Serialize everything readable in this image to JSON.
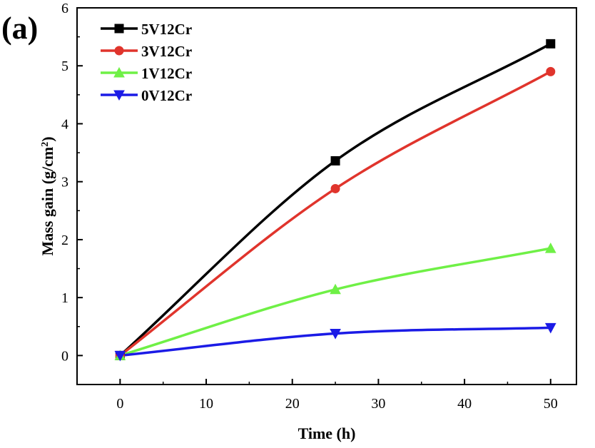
{
  "panel_label": "(a)",
  "chart_data": {
    "type": "line",
    "xlabel": "Time (h)",
    "ylabel_main": "Mass gain (g/cm",
    "ylabel_sup": "2",
    "ylabel_close": ")",
    "xlim": [
      -5,
      53
    ],
    "ylim": [
      -0.5,
      6
    ],
    "xticks": [
      0,
      10,
      20,
      30,
      40,
      50
    ],
    "yticks": [
      0,
      1,
      2,
      3,
      4,
      5,
      6
    ],
    "legend_position": "top-left",
    "grid": false,
    "series": [
      {
        "name": "5V12Cr",
        "color": "#000000",
        "marker": "square",
        "x": [
          0,
          25,
          50
        ],
        "y": [
          0.0,
          3.36,
          5.38
        ]
      },
      {
        "name": "3V12Cr",
        "color": "#e0342c",
        "marker": "circle",
        "x": [
          0,
          25,
          50
        ],
        "y": [
          0.0,
          2.88,
          4.9
        ]
      },
      {
        "name": "1V12Cr",
        "color": "#6ff046",
        "marker": "triangle-up",
        "x": [
          0,
          25,
          50
        ],
        "y": [
          0.0,
          1.14,
          1.85
        ]
      },
      {
        "name": "0V12Cr",
        "color": "#1b1be6",
        "marker": "triangle-down",
        "x": [
          0,
          25,
          50
        ],
        "y": [
          0.0,
          0.38,
          0.48
        ]
      }
    ]
  }
}
